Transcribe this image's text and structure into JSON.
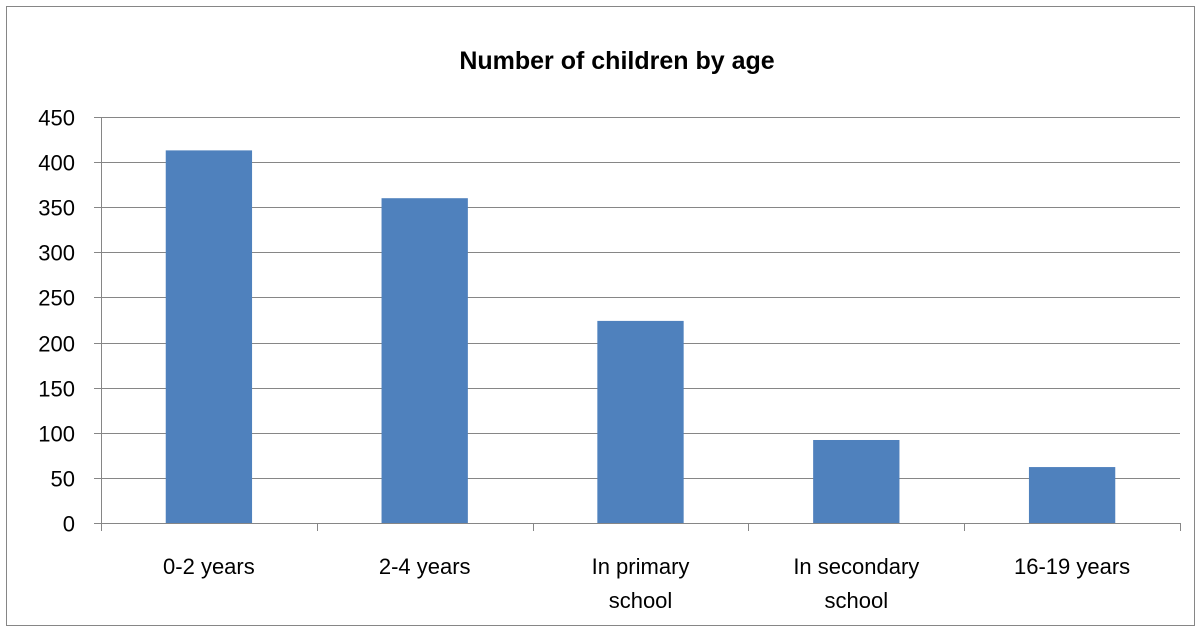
{
  "chart_data": {
    "type": "bar",
    "title": "Number of children by age",
    "xlabel": "",
    "ylabel": "",
    "categories": [
      [
        "0-2 years"
      ],
      [
        "2-4 years"
      ],
      [
        "In primary",
        "school"
      ],
      [
        "In secondary",
        "school"
      ],
      [
        "16-19 years"
      ]
    ],
    "series": [
      {
        "values": [
          413,
          360,
          224,
          92,
          62
        ]
      }
    ],
    "ylim": [
      0,
      450
    ],
    "yticks": [
      0,
      50,
      100,
      150,
      200,
      250,
      300,
      350,
      400,
      450
    ],
    "grid": true,
    "legend": "none",
    "colors": {
      "bar": "#4F81BD",
      "grid": "#868686",
      "axis": "#868686",
      "text": "#000000"
    }
  }
}
